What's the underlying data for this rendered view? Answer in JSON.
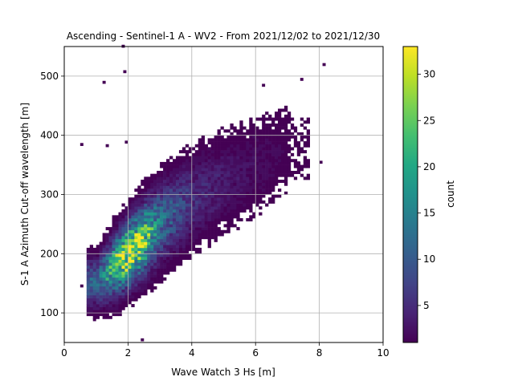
{
  "chart_data": {
    "type": "heatmap",
    "title": "Ascending - Sentinel-1 A - WV2 - From 2021/12/02 to 2021/12/30",
    "xlabel": "Wave Watch 3 Hs [m]",
    "ylabel": "S-1 A Azimuth Cut-off wavelength [m]",
    "xlim": [
      0,
      10
    ],
    "ylim": [
      50,
      550
    ],
    "xticks": [
      0,
      2,
      4,
      6,
      8,
      10
    ],
    "yticks": [
      100,
      200,
      300,
      400,
      500
    ],
    "grid": true,
    "bin_size": {
      "x": 0.1,
      "y": 5
    },
    "colorbar": {
      "label": "count",
      "min": 1,
      "max": 33,
      "ticks": [
        5,
        10,
        15,
        20,
        25,
        30
      ],
      "colormap": "viridis"
    },
    "density_ridge": [
      {
        "hs": 1.0,
        "center": 150,
        "spread": 25,
        "peak": 10
      },
      {
        "hs": 1.5,
        "center": 175,
        "spread": 30,
        "peak": 22
      },
      {
        "hs": 2.0,
        "center": 200,
        "spread": 32,
        "peak": 33
      },
      {
        "hs": 2.5,
        "center": 225,
        "spread": 35,
        "peak": 24
      },
      {
        "hs": 3.0,
        "center": 250,
        "spread": 38,
        "peak": 12
      },
      {
        "hs": 4.0,
        "center": 290,
        "spread": 42,
        "peak": 5
      },
      {
        "hs": 5.0,
        "center": 320,
        "spread": 45,
        "peak": 3
      },
      {
        "hs": 6.0,
        "center": 345,
        "spread": 45,
        "peak": 2
      },
      {
        "hs": 7.0,
        "center": 375,
        "spread": 50,
        "peak": 1
      }
    ],
    "notes_points": [
      {
        "x": 0.5,
        "y": 382,
        "count": 1
      },
      {
        "x": 1.3,
        "y": 380,
        "count": 1
      },
      {
        "x": 1.9,
        "y": 386,
        "count": 1
      },
      {
        "x": 1.2,
        "y": 487,
        "count": 1
      },
      {
        "x": 1.85,
        "y": 505,
        "count": 1
      },
      {
        "x": 8.1,
        "y": 517,
        "count": 1
      },
      {
        "x": 7.4,
        "y": 492,
        "count": 1
      },
      {
        "x": 6.2,
        "y": 482,
        "count": 1
      },
      {
        "x": 2.4,
        "y": 52,
        "count": 1
      },
      {
        "x": 0.5,
        "y": 143,
        "count": 1
      },
      {
        "x": 8.0,
        "y": 352,
        "count": 1
      },
      {
        "x": 7.3,
        "y": 351,
        "count": 1
      },
      {
        "x": 0.9,
        "y": 86,
        "count": 1
      },
      {
        "x": 1.8,
        "y": 548,
        "count": 1
      }
    ]
  }
}
